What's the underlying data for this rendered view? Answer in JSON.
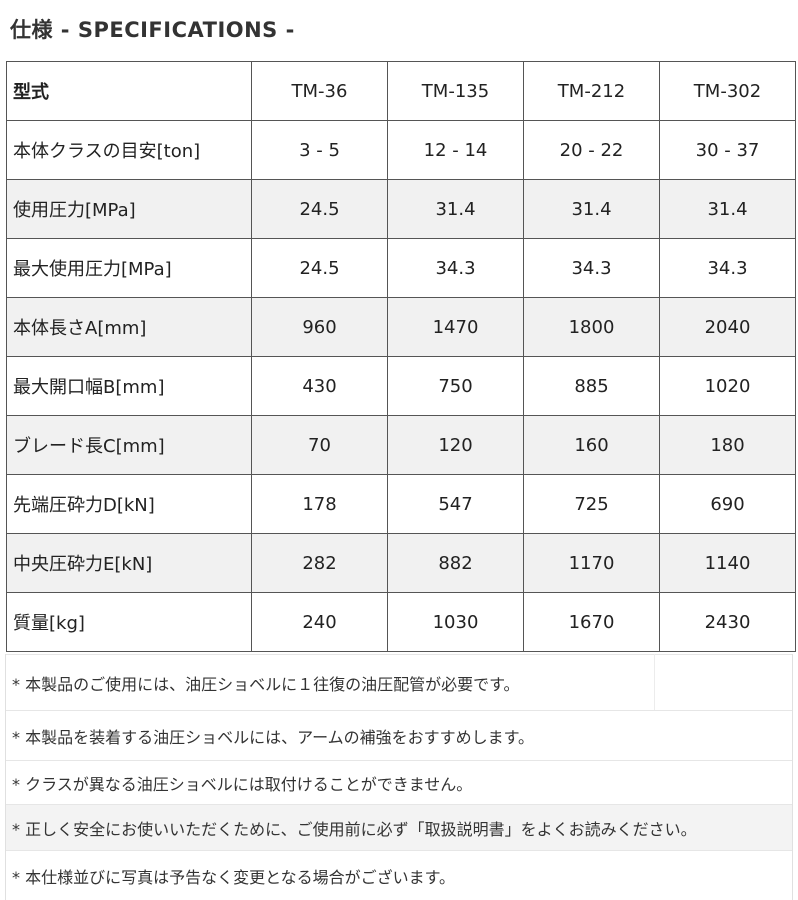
{
  "title": "仕様 - SPECIFICATIONS -",
  "table": {
    "header": {
      "label": "型式",
      "models": [
        "TM-36",
        "TM-135",
        "TM-212",
        "TM-302"
      ]
    },
    "rows": [
      {
        "label": "本体クラスの目安[ton]",
        "values": [
          "3 - 5",
          "12 - 14",
          "20 - 22",
          "30 - 37"
        ]
      },
      {
        "label": "使用圧力[MPa]",
        "values": [
          "24.5",
          "31.4",
          "31.4",
          "31.4"
        ]
      },
      {
        "label": "最大使用圧力[MPa]",
        "values": [
          "24.5",
          "34.3",
          "34.3",
          "34.3"
        ]
      },
      {
        "label": "本体長さA[mm]",
        "values": [
          "960",
          "1470",
          "1800",
          "2040"
        ]
      },
      {
        "label": "最大開口幅B[mm]",
        "values": [
          "430",
          "750",
          "885",
          "1020"
        ]
      },
      {
        "label": "ブレード長C[mm]",
        "values": [
          "70",
          "120",
          "160",
          "180"
        ]
      },
      {
        "label": "先端圧砕力D[kN]",
        "values": [
          "178",
          "547",
          "725",
          "690"
        ]
      },
      {
        "label": "中央圧砕力E[kN]",
        "values": [
          "282",
          "882",
          "1170",
          "1140"
        ]
      },
      {
        "label": "質量[kg]",
        "values": [
          "240",
          "1030",
          "1670",
          "2430"
        ]
      }
    ]
  },
  "notes": [
    "* 本製品のご使用には、油圧ショベルに１往復の油圧配管が必要です。",
    "* 本製品を装着する油圧ショベルには、アームの補強をおすすめします。",
    "* クラスが異なる油圧ショベルには取付けることができません。",
    "* 正しく安全にお使いいただくために、ご使用前に必ず「取扱説明書」をよくお読みください。",
    "* 本仕様並びに写真は予告なく変更となる場合がございます。"
  ]
}
